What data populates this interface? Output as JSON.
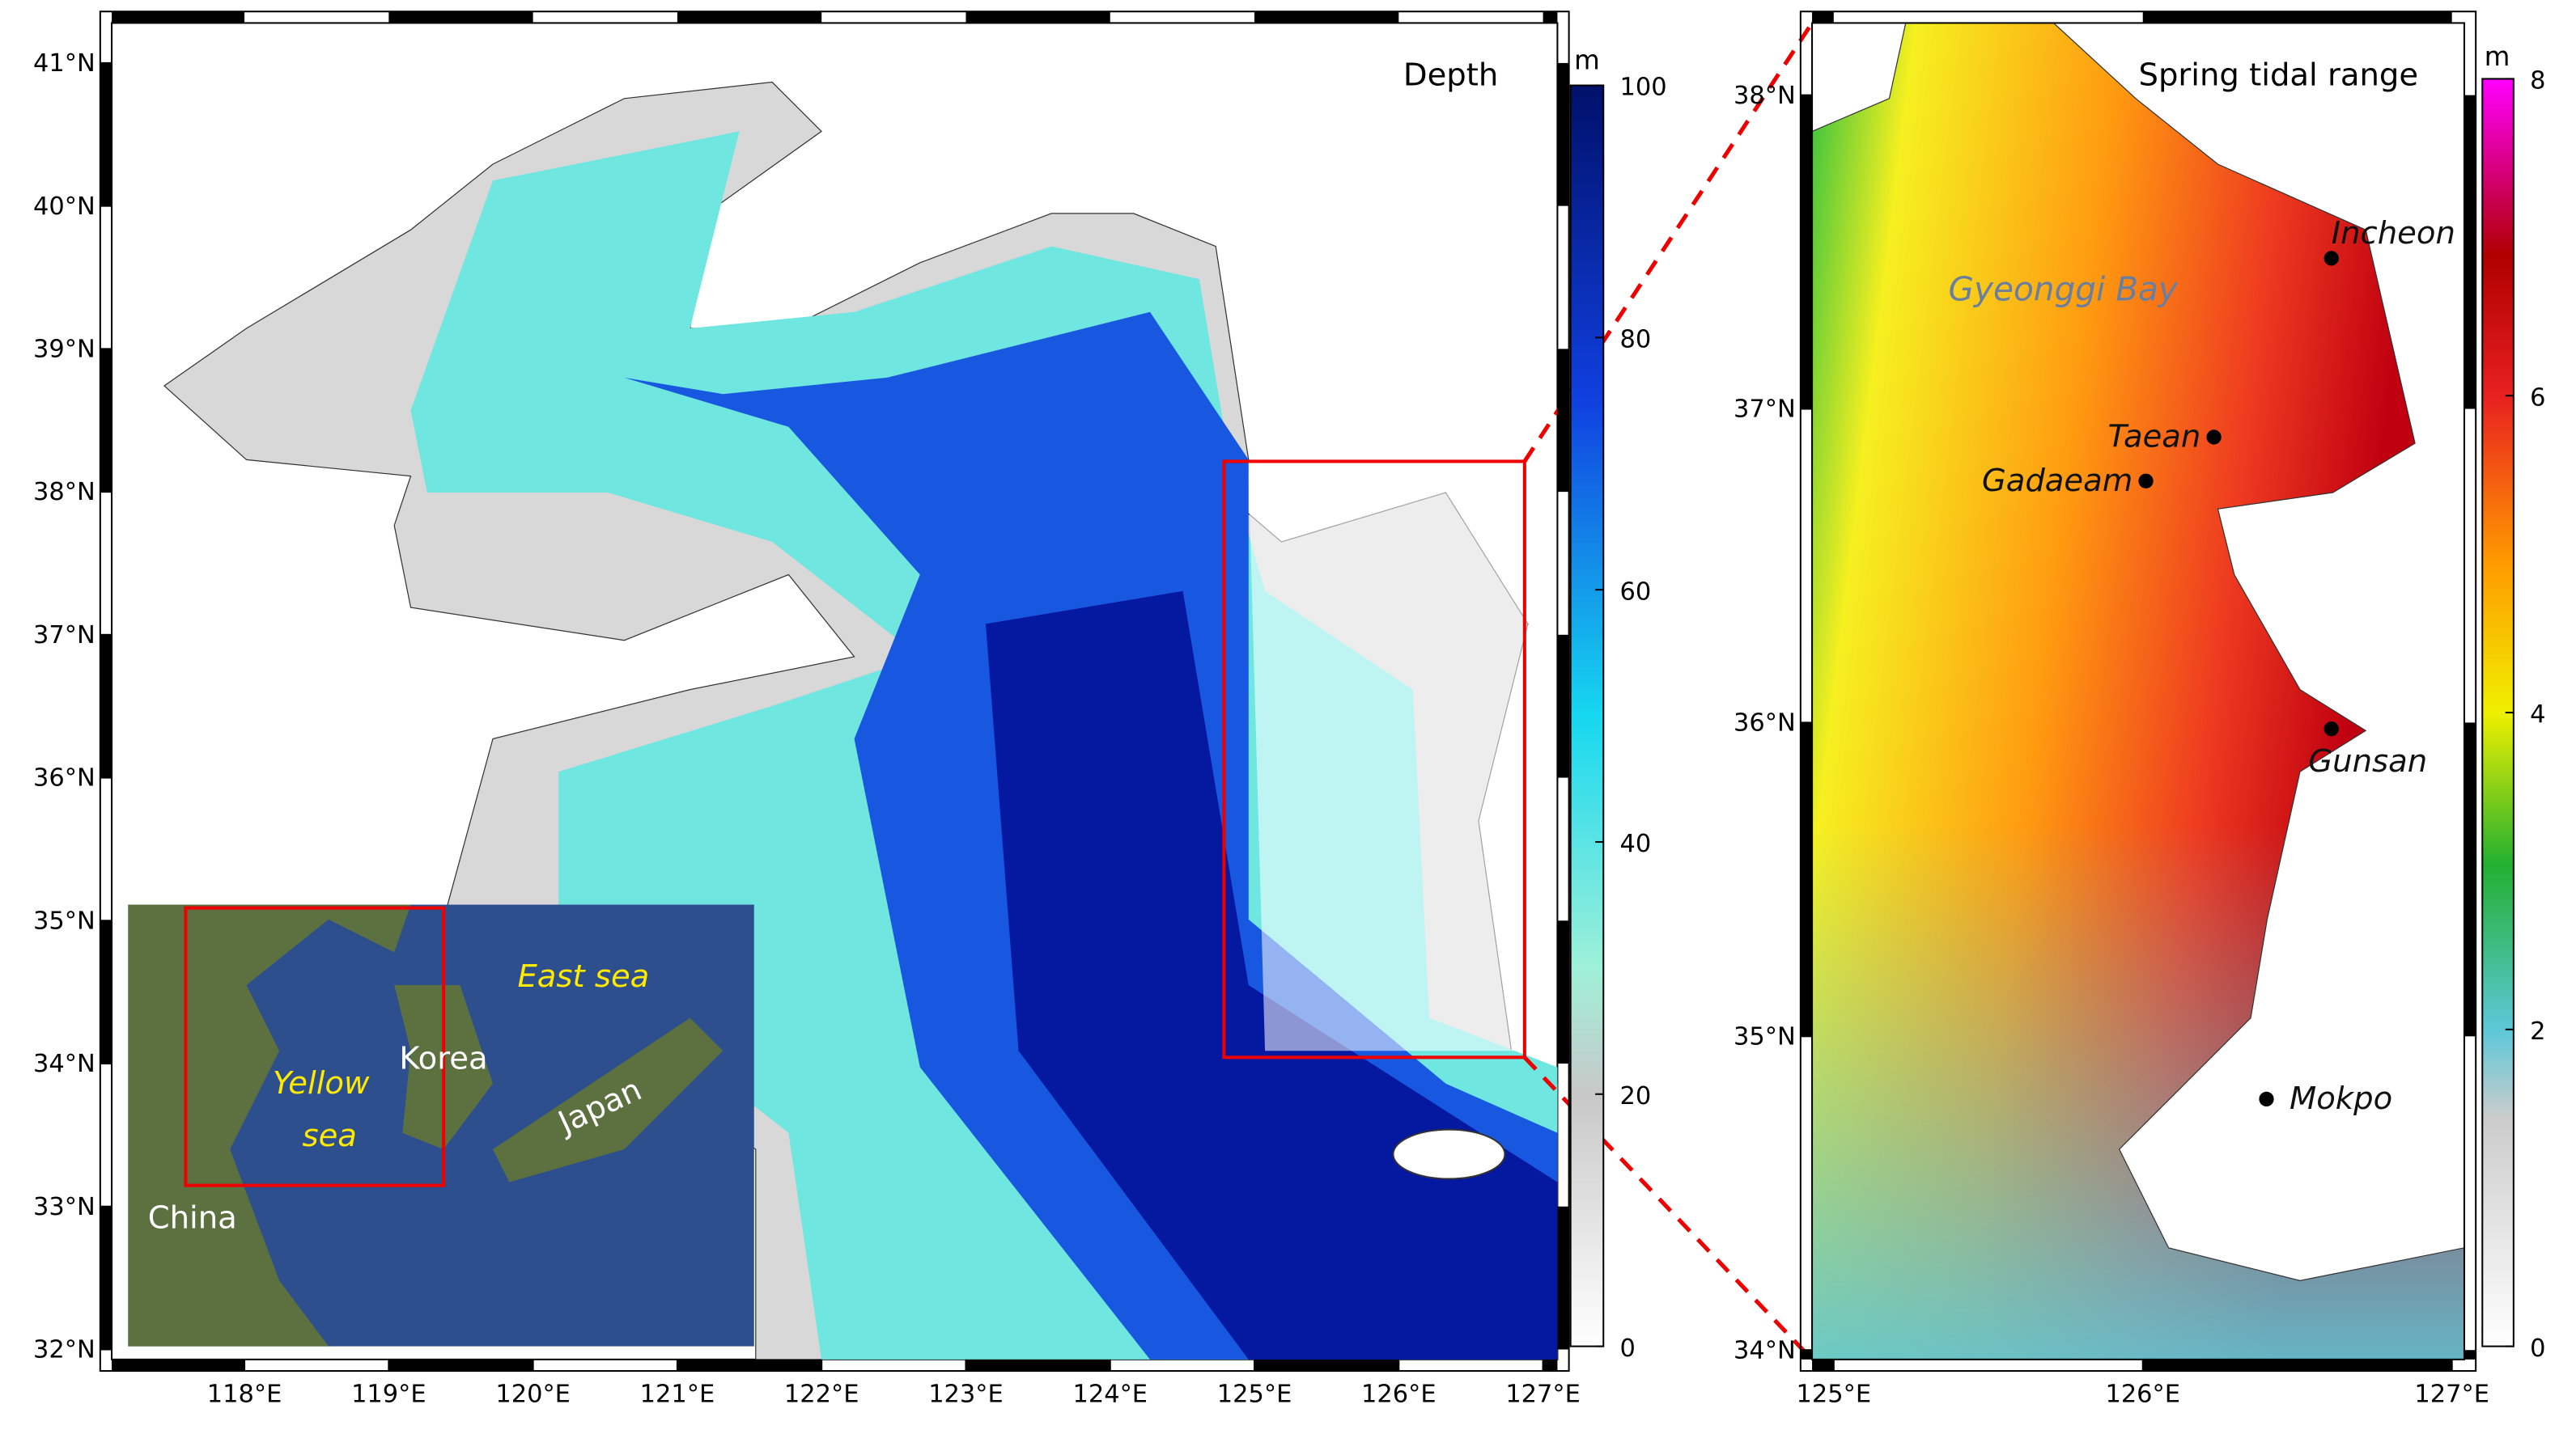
{
  "left_map": {
    "title": "Depth",
    "lon_range": [
      117.08,
      127.1
    ],
    "lat_range": [
      31.93,
      41.28
    ],
    "lon_ticks": [
      {
        "value": 118,
        "label": "118°E"
      },
      {
        "value": 119,
        "label": "119°E"
      },
      {
        "value": 120,
        "label": "120°E"
      },
      {
        "value": 121,
        "label": "121°E"
      },
      {
        "value": 122,
        "label": "122°E"
      },
      {
        "value": 123,
        "label": "123°E"
      },
      {
        "value": 124,
        "label": "124°E"
      },
      {
        "value": 125,
        "label": "125°E"
      },
      {
        "value": 126,
        "label": "126°E"
      },
      {
        "value": 127,
        "label": "127°E"
      }
    ],
    "lat_ticks": [
      {
        "value": 32,
        "label": "32°N"
      },
      {
        "value": 33,
        "label": "33°N"
      },
      {
        "value": 34,
        "label": "34°N"
      },
      {
        "value": 35,
        "label": "35°N"
      },
      {
        "value": 36,
        "label": "36°N"
      },
      {
        "value": 37,
        "label": "37°N"
      },
      {
        "value": 38,
        "label": "38°N"
      },
      {
        "value": 39,
        "label": "39°N"
      },
      {
        "value": 40,
        "label": "40°N"
      },
      {
        "value": 41,
        "label": "41°N"
      }
    ],
    "colorbar": {
      "unit": "m",
      "range": [
        0,
        100
      ],
      "ticks": [
        0,
        20,
        40,
        60,
        80,
        100
      ]
    },
    "inset": {
      "china": "China",
      "korea": "Korea",
      "japan": "Japan",
      "east_sea": "East sea",
      "yellow_sea": [
        "Yellow",
        "sea"
      ]
    }
  },
  "right_map": {
    "title": "Spring tidal range",
    "lon_range": [
      124.93,
      127.04
    ],
    "lat_range": [
      33.97,
      38.23
    ],
    "lon_ticks": [
      {
        "value": 125,
        "label": "125°E"
      },
      {
        "value": 126,
        "label": "126°E"
      },
      {
        "value": 127,
        "label": "127°E"
      }
    ],
    "lat_ticks": [
      {
        "value": 34,
        "label": "34°N"
      },
      {
        "value": 35,
        "label": "35°N"
      },
      {
        "value": 36,
        "label": "36°N"
      },
      {
        "value": 37,
        "label": "37°N"
      },
      {
        "value": 38,
        "label": "38°N"
      }
    ],
    "colorbar": {
      "unit": "m",
      "range": [
        0,
        8
      ],
      "ticks": [
        0,
        2,
        4,
        6,
        8
      ]
    },
    "bay_label": "Gyeonggi Bay",
    "stations": [
      {
        "name": "Incheon",
        "lon": 126.61,
        "lat": 37.48
      },
      {
        "name": "Taean",
        "lon": 126.23,
        "lat": 36.91
      },
      {
        "name": "Gadaeam",
        "lon": 126.01,
        "lat": 36.77
      },
      {
        "name": "Gunsan",
        "lon": 126.61,
        "lat": 35.98
      },
      {
        "name": "Mokpo",
        "lon": 126.4,
        "lat": 34.8
      }
    ]
  }
}
